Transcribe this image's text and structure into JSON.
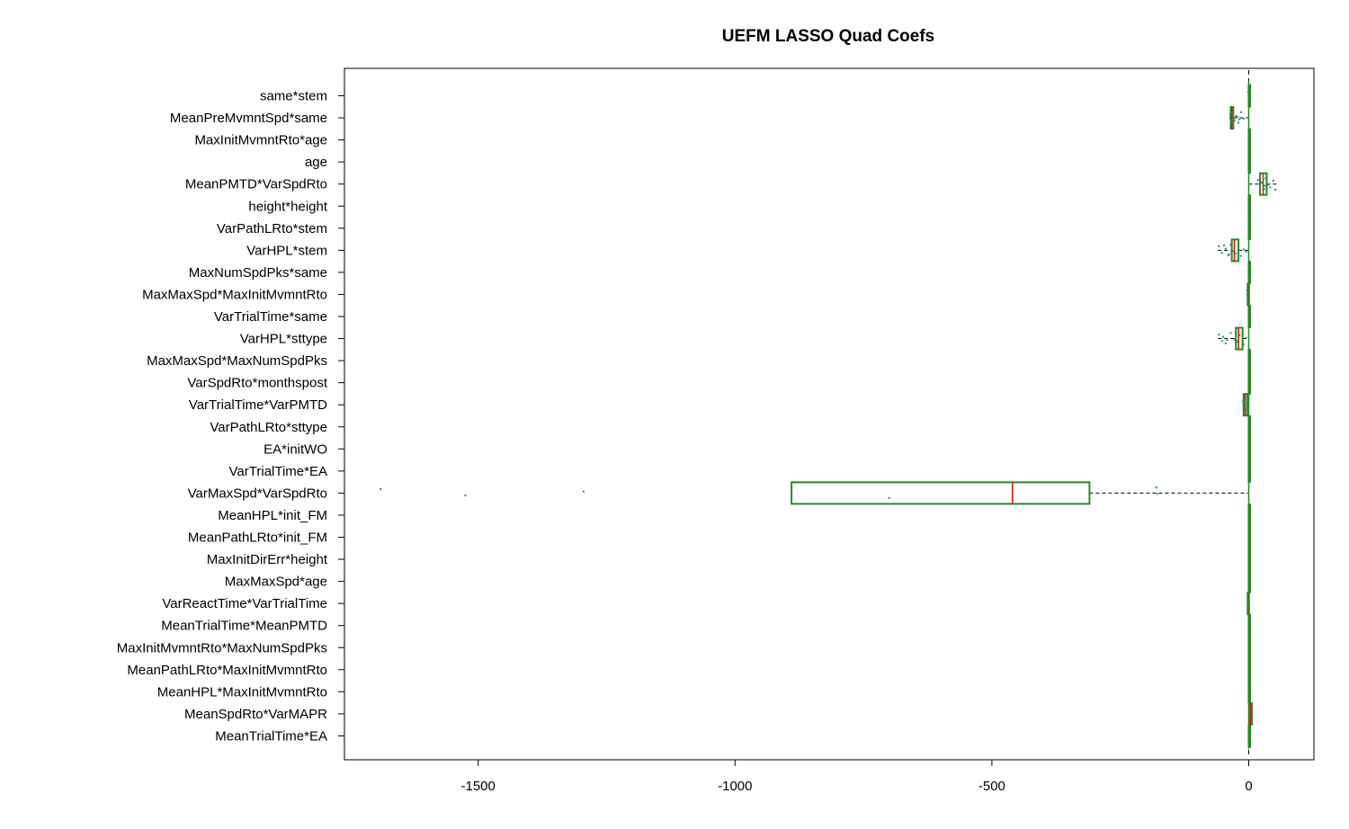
{
  "chart_data": {
    "type": "boxplot",
    "title": "UEFM LASSO Quad Coefs",
    "xlabel": "",
    "ylabel": "",
    "orientation": "horizontal",
    "xlim": [
      -1750,
      130
    ],
    "x_ticks": [
      -1500,
      -1000,
      -500,
      0
    ],
    "x_tick_labels": [
      "-1500",
      "-1000",
      "-500",
      "0"
    ],
    "grid": false,
    "legend": "none",
    "colors": {
      "box": "#228B22",
      "median": "#FF0000",
      "points": "#1E8B8B",
      "whisker": "#000000"
    },
    "categories": [
      "same*stem",
      "MeanPreMvmntSpd*same",
      "MaxInitMvmntRto*age",
      "age",
      "MeanPMTD*VarSpdRto",
      "height*height",
      "VarPathLRto*stem",
      "VarHPL*stem",
      "MaxNumSpdPks*same",
      "MaxMaxSpd*MaxInitMvmntRto",
      "VarTrialTime*same",
      "VarHPL*sttype",
      "MaxMaxSpd*MaxNumSpdPks",
      "VarSpdRto*monthspost",
      "VarTrialTime*VarPMTD",
      "VarPathLRto*sttype",
      "EA*initWO",
      "VarTrialTime*EA",
      "VarMaxSpd*VarSpdRto",
      "MeanHPL*init_FM",
      "MeanPathLRto*init_FM",
      "MaxInitDirErr*height",
      "MaxMaxSpd*age",
      "VarReactTime*VarTrialTime",
      "MeanTrialTime*MeanPMTD",
      "MaxInitMvmntRto*MaxNumSpdPks",
      "MeanPathLRto*MaxInitMvmntRto",
      "MeanHPL*MaxInitMvmntRto",
      "MeanSpdRto*VarMAPR",
      "MeanTrialTime*EA"
    ],
    "boxes": [
      {
        "q1": 0,
        "median": 0,
        "q3": 0,
        "whisker_low": -2,
        "whisker_high": 1,
        "points": [
          -1,
          0,
          1
        ]
      },
      {
        "q1": -35,
        "median": -33,
        "q3": -30,
        "whisker_low": -38,
        "whisker_high": 0,
        "points": [
          -32,
          -28,
          -25,
          -20,
          -15,
          -10,
          -34,
          -36,
          -30,
          -22,
          -18
        ]
      },
      {
        "q1": 0,
        "median": 0,
        "q3": 0,
        "whisker_low": 0,
        "whisker_high": 0,
        "points": [
          0
        ]
      },
      {
        "q1": 0,
        "median": 0,
        "q3": 0,
        "whisker_low": 0,
        "whisker_high": 0,
        "points": [
          0
        ]
      },
      {
        "q1": 22,
        "median": 28,
        "q3": 35,
        "whisker_low": 0,
        "whisker_high": 55,
        "points": [
          18,
          22,
          25,
          30,
          33,
          38,
          42,
          48,
          52,
          27,
          31
        ]
      },
      {
        "q1": 0,
        "median": 0,
        "q3": 0,
        "whisker_low": 0,
        "whisker_high": 0,
        "points": [
          0
        ]
      },
      {
        "q1": 0,
        "median": 0,
        "q3": 0,
        "whisker_low": 0,
        "whisker_high": 0,
        "points": [
          0
        ]
      },
      {
        "q1": -33,
        "median": -28,
        "q3": -20,
        "whisker_low": -60,
        "whisker_high": 0,
        "points": [
          -58,
          -52,
          -45,
          -40,
          -35,
          -30,
          -25,
          -20,
          -15,
          -10,
          -5,
          -48,
          -38
        ]
      },
      {
        "q1": 0,
        "median": 0,
        "q3": 0,
        "whisker_low": 0,
        "whisker_high": 0,
        "points": [
          0
        ]
      },
      {
        "q1": -2,
        "median": -1,
        "q3": 0,
        "whisker_low": -4,
        "whisker_high": 1,
        "points": [
          -3,
          -2,
          -1,
          0
        ]
      },
      {
        "q1": 0,
        "median": 0,
        "q3": 0,
        "whisker_low": 0,
        "whisker_high": 0,
        "points": [
          0
        ]
      },
      {
        "q1": -25,
        "median": -20,
        "q3": -12,
        "whisker_low": -60,
        "whisker_high": 0,
        "points": [
          -58,
          -52,
          -50,
          -45,
          -35,
          -28,
          -22,
          -18,
          -10,
          -5,
          -42
        ]
      },
      {
        "q1": 0,
        "median": 0,
        "q3": 0,
        "whisker_low": 0,
        "whisker_high": 0,
        "points": [
          0
        ]
      },
      {
        "q1": 0,
        "median": 0,
        "q3": 0,
        "whisker_low": 0,
        "whisker_high": 0,
        "points": [
          0
        ]
      },
      {
        "q1": -10,
        "median": -7,
        "q3": -3,
        "whisker_low": -12,
        "whisker_high": 0,
        "points": [
          -11,
          -9,
          -7,
          -5,
          -3,
          -2
        ]
      },
      {
        "q1": 0,
        "median": 0,
        "q3": 0,
        "whisker_low": 0,
        "whisker_high": 0,
        "points": [
          0
        ]
      },
      {
        "q1": 0,
        "median": 0,
        "q3": 0,
        "whisker_low": 0,
        "whisker_high": 0,
        "points": [
          0
        ]
      },
      {
        "q1": 0,
        "median": 0,
        "q3": 0,
        "whisker_low": 0,
        "whisker_high": 0,
        "points": [
          0
        ]
      },
      {
        "q1": -890,
        "median": -460,
        "q3": -310,
        "whisker_low": -890,
        "whisker_high": 0,
        "points": [
          -1690,
          -1525,
          -1295,
          -700,
          -180,
          -178
        ]
      },
      {
        "q1": 0,
        "median": 0,
        "q3": 0,
        "whisker_low": 0,
        "whisker_high": 0,
        "points": [
          0
        ]
      },
      {
        "q1": 0,
        "median": 0,
        "q3": 0,
        "whisker_low": 0,
        "whisker_high": 0,
        "points": [
          0
        ]
      },
      {
        "q1": 0,
        "median": 0,
        "q3": 0,
        "whisker_low": 0,
        "whisker_high": 0,
        "points": [
          0
        ]
      },
      {
        "q1": 0,
        "median": 0,
        "q3": 0,
        "whisker_low": 0,
        "whisker_high": 0,
        "points": [
          0
        ]
      },
      {
        "q1": -2,
        "median": -1,
        "q3": 0,
        "whisker_low": -3,
        "whisker_high": 0,
        "points": [
          -2,
          -1
        ]
      },
      {
        "q1": 0,
        "median": 0,
        "q3": 0,
        "whisker_low": 0,
        "whisker_high": 0,
        "points": [
          0
        ]
      },
      {
        "q1": 0,
        "median": 0,
        "q3": 0,
        "whisker_low": 0,
        "whisker_high": 0,
        "points": [
          0
        ]
      },
      {
        "q1": 0,
        "median": 0,
        "q3": 0,
        "whisker_low": 0,
        "whisker_high": 0,
        "points": [
          0
        ]
      },
      {
        "q1": 0,
        "median": 0,
        "q3": 0,
        "whisker_low": 0,
        "whisker_high": 0,
        "points": [
          0
        ]
      },
      {
        "q1": 2,
        "median": 4,
        "q3": 6,
        "whisker_low": 0,
        "whisker_high": 7,
        "points": [
          2,
          4,
          6
        ]
      },
      {
        "q1": 0,
        "median": 0,
        "q3": 0,
        "whisker_low": 0,
        "whisker_high": 0,
        "points": [
          0
        ]
      }
    ]
  }
}
